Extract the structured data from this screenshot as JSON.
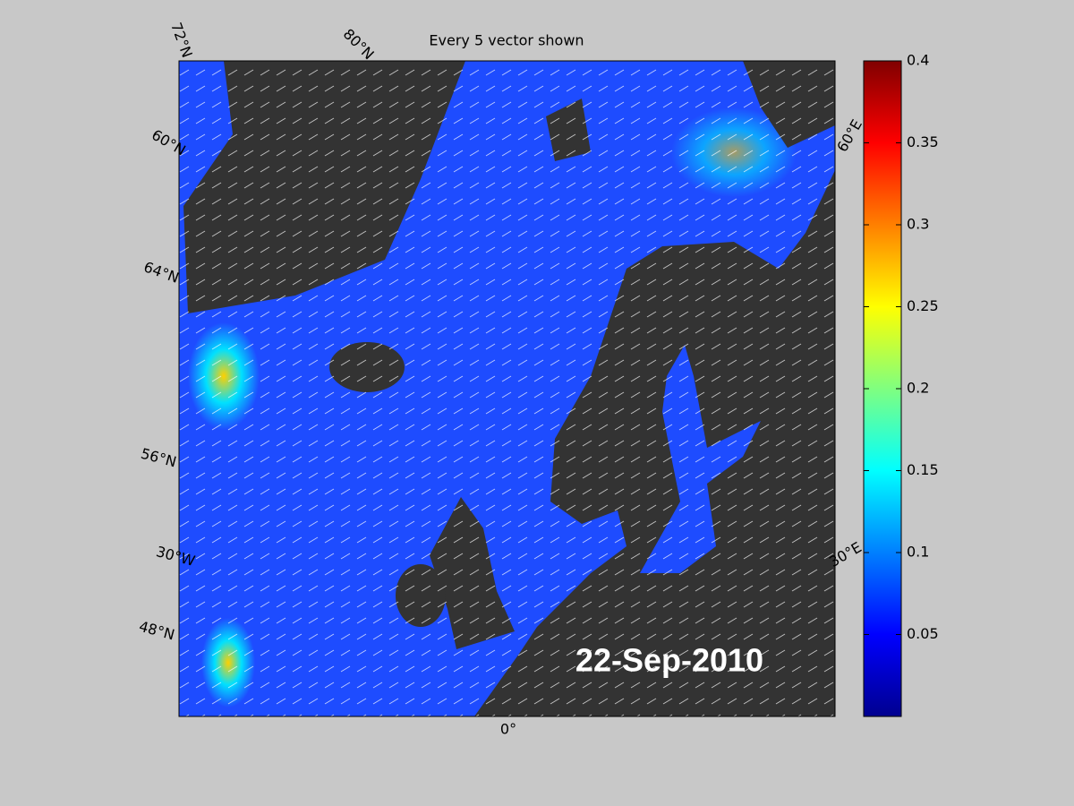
{
  "map": {
    "title": "Every 5 vector shown",
    "date": "22-Sep-2010",
    "graticule_labels": [
      "72°N",
      "80°N",
      "60°N",
      "64°N",
      "56°N",
      "30°W",
      "48°N",
      "0°",
      "30°E",
      "60°E"
    ],
    "colorbar": {
      "lim": [
        0,
        0.4
      ],
      "ticks": [
        0.05,
        0.1,
        0.15,
        0.2,
        0.25,
        0.3,
        0.35,
        0.4
      ]
    }
  }
}
